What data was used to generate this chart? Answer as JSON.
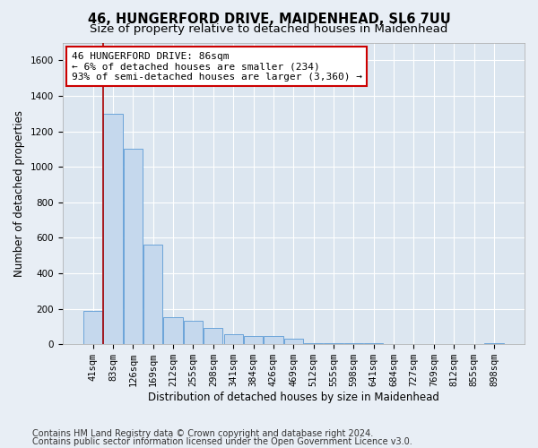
{
  "title1": "46, HUNGERFORD DRIVE, MAIDENHEAD, SL6 7UU",
  "title2": "Size of property relative to detached houses in Maidenhead",
  "xlabel": "Distribution of detached houses by size in Maidenhead",
  "ylabel": "Number of detached properties",
  "categories": [
    "41sqm",
    "83sqm",
    "126sqm",
    "169sqm",
    "212sqm",
    "255sqm",
    "298sqm",
    "341sqm",
    "384sqm",
    "426sqm",
    "469sqm",
    "512sqm",
    "555sqm",
    "598sqm",
    "641sqm",
    "684sqm",
    "727sqm",
    "769sqm",
    "812sqm",
    "855sqm",
    "898sqm"
  ],
  "values": [
    190,
    1300,
    1100,
    560,
    155,
    130,
    90,
    55,
    45,
    45,
    30,
    5,
    5,
    5,
    5,
    0,
    0,
    0,
    0,
    0,
    5
  ],
  "bar_color": "#c5d8ed",
  "bar_edge_color": "#5b9bd5",
  "vline_x": 0.5,
  "vline_color": "#aa0000",
  "annotation_line1": "46 HUNGERFORD DRIVE: 86sqm",
  "annotation_line2": "← 6% of detached houses are smaller (234)",
  "annotation_line3": "93% of semi-detached houses are larger (3,360) →",
  "annotation_box_color": "#ffffff",
  "annotation_box_edge": "#cc0000",
  "ylim": [
    0,
    1700
  ],
  "yticks": [
    0,
    200,
    400,
    600,
    800,
    1000,
    1200,
    1400,
    1600
  ],
  "bg_color": "#e8eef5",
  "plot_bg_color": "#dce6f0",
  "footer1": "Contains HM Land Registry data © Crown copyright and database right 2024.",
  "footer2": "Contains public sector information licensed under the Open Government Licence v3.0.",
  "title1_fontsize": 10.5,
  "title2_fontsize": 9.5,
  "xlabel_fontsize": 8.5,
  "ylabel_fontsize": 8.5,
  "tick_fontsize": 7.5,
  "footer_fontsize": 7.0,
  "grid_color": "#c8d8e8",
  "annotation_fontsize": 8.0
}
